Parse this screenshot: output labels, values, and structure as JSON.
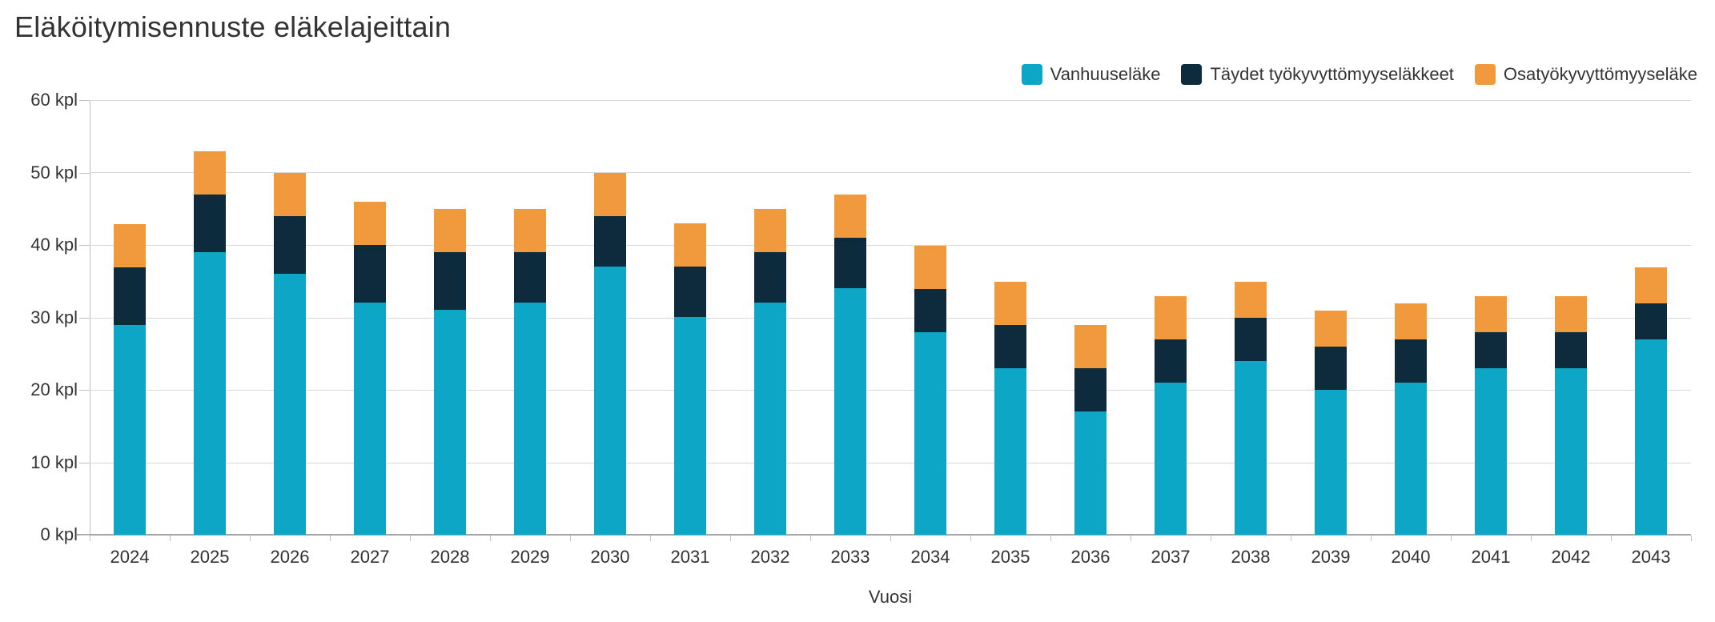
{
  "chart_data": {
    "type": "bar",
    "stacked": true,
    "title": "Eläköitymisennuste eläkelajeittain",
    "xlabel": "Vuosi",
    "ylabel": "",
    "y_unit": "kpl",
    "ylim": [
      0,
      60
    ],
    "y_ticks": [
      0,
      10,
      20,
      30,
      40,
      50,
      60
    ],
    "y_tick_labels": [
      "0 kpl",
      "10 kpl",
      "20 kpl",
      "30 kpl",
      "40 kpl",
      "50 kpl",
      "60 kpl"
    ],
    "grid": true,
    "legend_position": "top-right",
    "categories": [
      "2024",
      "2025",
      "2026",
      "2027",
      "2028",
      "2029",
      "2030",
      "2031",
      "2032",
      "2033",
      "2034",
      "2035",
      "2036",
      "2037",
      "2038",
      "2039",
      "2040",
      "2041",
      "2042",
      "2043"
    ],
    "series": [
      {
        "name": "Vanhuuseläke",
        "color": "#0da6c6",
        "values": [
          29,
          39,
          36,
          32,
          31,
          32,
          37,
          30,
          32,
          34,
          28,
          23,
          17,
          21,
          24,
          20,
          21,
          23,
          23,
          27
        ]
      },
      {
        "name": "Täydet työkyvyttömyyseläkkeet",
        "color": "#0d2b3c",
        "values": [
          8,
          8,
          8,
          8,
          8,
          7,
          7,
          7,
          7,
          7,
          6,
          6,
          6,
          6,
          6,
          6,
          6,
          5,
          5,
          5
        ]
      },
      {
        "name": "Osatyökyvyttömyyseläke",
        "color": "#f0993d",
        "values": [
          6,
          6,
          6,
          6,
          6,
          6,
          6,
          6,
          6,
          6,
          6,
          6,
          6,
          6,
          5,
          5,
          5,
          5,
          5,
          5
        ]
      }
    ],
    "totals": [
      43,
      53,
      50,
      46,
      45,
      45,
      50,
      43,
      45,
      47,
      40,
      35,
      29,
      33,
      35,
      31,
      32,
      33,
      33,
      37
    ]
  },
  "colors": {
    "gridline": "#d9d9d9",
    "axis_line": "#a6a6a6",
    "tick": "#c2c2c2",
    "text": "#333333",
    "background": "#ffffff"
  }
}
